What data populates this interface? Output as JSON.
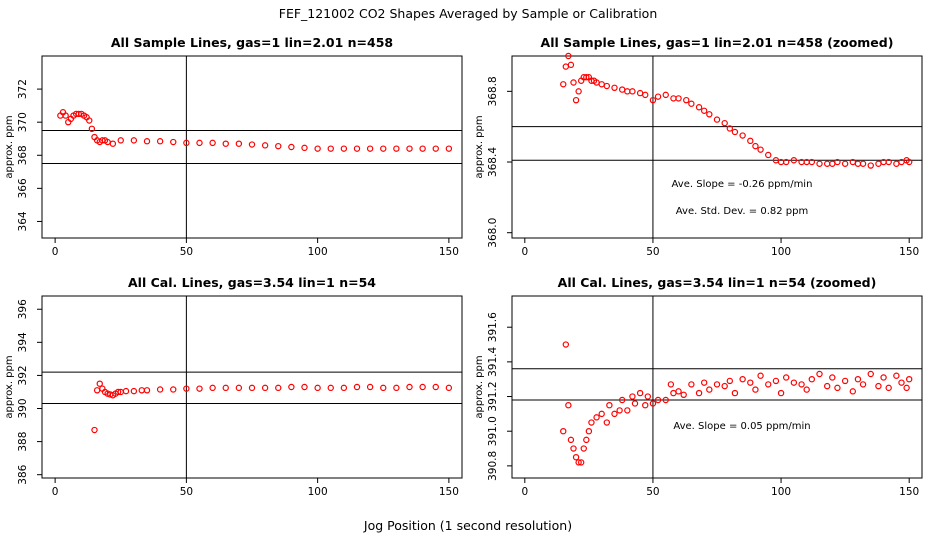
{
  "figure": {
    "title": "FEF_121002  CO2 Shapes Averaged by Sample or Calibration",
    "xlabel": "Jog Position (1 second resolution)"
  },
  "chart_data": [
    {
      "type": "scatter",
      "title": "All Sample Lines, gas=1 lin=2.01 n=458",
      "xlabel": "",
      "ylabel": "approx. ppm",
      "xlim": [
        -5,
        155
      ],
      "ylim": [
        363,
        374
      ],
      "xticks": [
        0,
        50,
        100,
        150
      ],
      "yticks": [
        364,
        366,
        368,
        370,
        372
      ],
      "hlines": [
        369.5,
        367.5
      ],
      "vline": 50,
      "annotations": [],
      "series": [
        {
          "x": [
            2,
            3,
            4,
            5,
            6,
            7,
            8,
            9,
            10,
            11,
            12,
            13,
            14,
            15,
            16,
            17,
            18,
            19,
            20,
            22,
            25,
            30,
            35,
            40,
            45,
            50,
            55,
            60,
            65,
            70,
            75,
            80,
            85,
            90,
            95,
            100,
            105,
            110,
            115,
            120,
            125,
            130,
            135,
            140,
            145,
            150
          ],
          "y": [
            370.4,
            370.6,
            370.4,
            370.0,
            370.2,
            370.4,
            370.5,
            370.5,
            370.5,
            370.4,
            370.3,
            370.1,
            369.6,
            369.1,
            368.9,
            368.8,
            368.9,
            368.9,
            368.8,
            368.7,
            368.9,
            368.9,
            368.85,
            368.85,
            368.8,
            368.75,
            368.75,
            368.75,
            368.7,
            368.7,
            368.65,
            368.6,
            368.55,
            368.5,
            368.45,
            368.4,
            368.4,
            368.4,
            368.4,
            368.4,
            368.4,
            368.4,
            368.4,
            368.4,
            368.4,
            368.4
          ]
        }
      ]
    },
    {
      "type": "scatter",
      "title": "All Sample Lines, gas=1 lin=2.01 n=458 (zoomed)",
      "xlabel": "",
      "ylabel": "approx. ppm",
      "xlim": [
        -5,
        155
      ],
      "ylim": [
        367.97,
        369.0
      ],
      "xticks": [
        0,
        50,
        100,
        150
      ],
      "yticks": [
        368.0,
        368.4,
        368.8
      ],
      "hlines": [
        368.6,
        368.41
      ],
      "vline": 50,
      "annotations": [
        "Ave. Slope =  -0.26  ppm/min",
        "Ave. Std. Dev. =  0.82  ppm"
      ],
      "series": [
        {
          "x": [
            15,
            16,
            17,
            18,
            19,
            20,
            21,
            22,
            23,
            24,
            25,
            26,
            27,
            28,
            30,
            32,
            35,
            38,
            40,
            42,
            45,
            47,
            50,
            52,
            55,
            58,
            60,
            63,
            65,
            68,
            70,
            72,
            75,
            78,
            80,
            82,
            85,
            88,
            90,
            92,
            95,
            98,
            100,
            102,
            105,
            108,
            110,
            112,
            115,
            118,
            120,
            122,
            125,
            128,
            130,
            132,
            135,
            138,
            140,
            142,
            145,
            147,
            149,
            150
          ],
          "y": [
            368.84,
            368.94,
            369.0,
            368.95,
            368.85,
            368.75,
            368.8,
            368.86,
            368.88,
            368.88,
            368.88,
            368.86,
            368.86,
            368.85,
            368.84,
            368.83,
            368.82,
            368.81,
            368.8,
            368.8,
            368.79,
            368.78,
            368.75,
            368.77,
            368.78,
            368.76,
            368.76,
            368.75,
            368.73,
            368.71,
            368.69,
            368.67,
            368.64,
            368.62,
            368.59,
            368.57,
            368.55,
            368.52,
            368.49,
            368.47,
            368.44,
            368.41,
            368.4,
            368.4,
            368.41,
            368.4,
            368.4,
            368.4,
            368.39,
            368.39,
            368.39,
            368.4,
            368.39,
            368.4,
            368.39,
            368.39,
            368.38,
            368.39,
            368.4,
            368.4,
            368.39,
            368.4,
            368.41,
            368.4
          ]
        }
      ]
    },
    {
      "type": "scatter",
      "title": "All Cal. Lines, gas=3.54 lin=1 n=54",
      "xlabel": "",
      "ylabel": "approx. ppm",
      "xlim": [
        -5,
        155
      ],
      "ylim": [
        385.8,
        396.8
      ],
      "xticks": [
        0,
        50,
        100,
        150
      ],
      "yticks": [
        386,
        388,
        390,
        392,
        394,
        396
      ],
      "hlines": [
        392.2,
        390.3
      ],
      "vline": 50,
      "annotations": [],
      "series": [
        {
          "x": [
            15,
            16,
            17,
            18,
            19,
            20,
            21,
            22,
            23,
            24,
            25,
            27,
            30,
            33,
            35,
            40,
            45,
            50,
            55,
            60,
            65,
            70,
            75,
            80,
            85,
            90,
            95,
            100,
            105,
            110,
            115,
            120,
            125,
            130,
            135,
            140,
            145,
            150
          ],
          "y": [
            388.7,
            391.1,
            391.5,
            391.2,
            391.0,
            390.9,
            390.85,
            390.8,
            390.9,
            391.0,
            391.0,
            391.05,
            391.05,
            391.1,
            391.1,
            391.15,
            391.15,
            391.2,
            391.2,
            391.25,
            391.25,
            391.25,
            391.25,
            391.25,
            391.25,
            391.3,
            391.3,
            391.25,
            391.25,
            391.25,
            391.3,
            391.3,
            391.25,
            391.25,
            391.3,
            391.3,
            391.3,
            391.25
          ]
        }
      ]
    },
    {
      "type": "scatter",
      "title": "All Cal. Lines, gas=3.54 lin=1 n=54 (zoomed)",
      "xlabel": "",
      "ylabel": "approx. ppm",
      "xlim": [
        -5,
        155
      ],
      "ylim": [
        390.73,
        391.78
      ],
      "xticks": [
        0,
        50,
        100,
        150
      ],
      "yticks": [
        390.8,
        391.0,
        391.2,
        391.4,
        391.6
      ],
      "hlines": [
        391.36,
        391.18
      ],
      "vline": 50,
      "annotations": [
        "Ave. Slope =  0.05  ppm/min"
      ],
      "series": [
        {
          "x": [
            15,
            16,
            17,
            18,
            19,
            20,
            21,
            22,
            23,
            24,
            25,
            26,
            28,
            30,
            32,
            33,
            35,
            37,
            38,
            40,
            42,
            43,
            45,
            47,
            48,
            50,
            52,
            55,
            57,
            58,
            60,
            62,
            65,
            68,
            70,
            72,
            75,
            78,
            80,
            82,
            85,
            88,
            90,
            92,
            95,
            98,
            100,
            102,
            105,
            108,
            110,
            112,
            115,
            118,
            120,
            122,
            125,
            128,
            130,
            132,
            135,
            138,
            140,
            142,
            145,
            147,
            149,
            150
          ],
          "y": [
            391.0,
            391.5,
            391.15,
            390.95,
            390.9,
            390.85,
            390.82,
            390.82,
            390.9,
            390.95,
            391.0,
            391.05,
            391.08,
            391.1,
            391.05,
            391.15,
            391.1,
            391.12,
            391.18,
            391.12,
            391.2,
            391.16,
            391.22,
            391.15,
            391.2,
            391.16,
            391.18,
            391.18,
            391.27,
            391.22,
            391.23,
            391.21,
            391.27,
            391.22,
            391.28,
            391.24,
            391.27,
            391.26,
            391.29,
            391.22,
            391.3,
            391.28,
            391.24,
            391.32,
            391.27,
            391.29,
            391.22,
            391.31,
            391.28,
            391.27,
            391.24,
            391.3,
            391.33,
            391.26,
            391.31,
            391.25,
            391.29,
            391.23,
            391.3,
            391.27,
            391.33,
            391.26,
            391.31,
            391.25,
            391.32,
            391.28,
            391.25,
            391.3
          ]
        }
      ]
    }
  ]
}
